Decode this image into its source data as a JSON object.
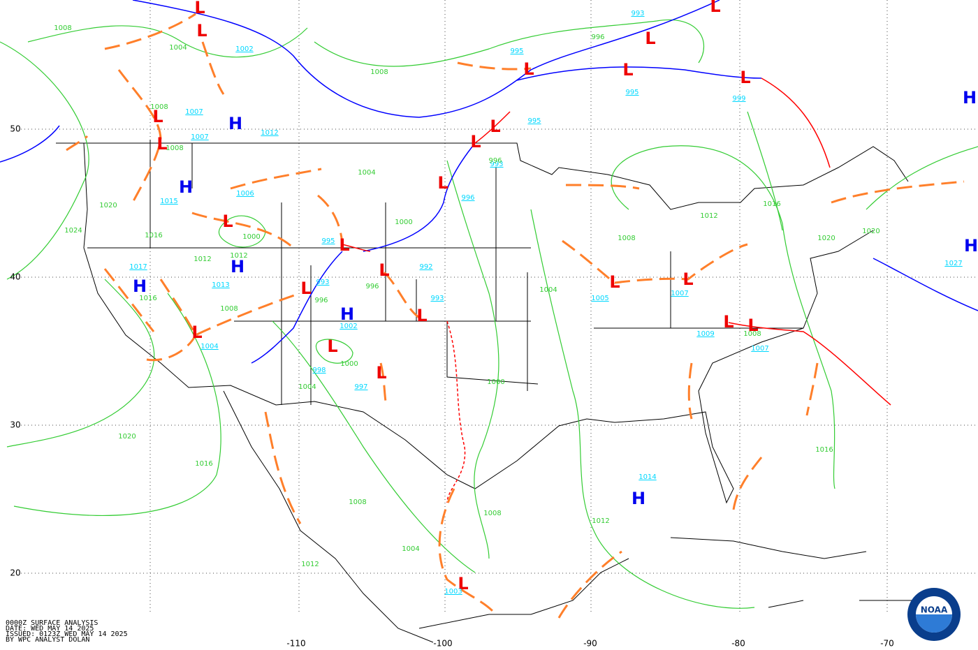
{
  "highs": [
    "H",
    "H",
    "H",
    "H",
    "H",
    "H",
    "H",
    "H"
  ],
  "lows": [
    "L",
    "L",
    "L",
    "L",
    "L",
    "L",
    "L",
    "L",
    "L",
    "L",
    "L",
    "L",
    "L",
    "L",
    "L",
    "L",
    "L",
    "L",
    "L",
    "L",
    "L",
    "L",
    "L",
    "L",
    "L"
  ],
  "central_pressures": [
    993,
    995,
    1002,
    995,
    999,
    1007,
    995,
    1012,
    1007,
    993,
    1006,
    996,
    1015,
    995,
    1017,
    992,
    1013,
    993,
    993,
    1005,
    1007,
    1002,
    1004,
    1009,
    1007,
    998,
    997,
    1014,
    1003,
    1027
  ],
  "isobar_labels": [
    1008,
    1004,
    1008,
    996,
    1008,
    1008,
    1004,
    996,
    1020,
    1000,
    1024,
    1016,
    1012,
    1012,
    1000,
    1008,
    1016,
    1012,
    1020,
    1020,
    996,
    996,
    1008,
    1016,
    1004,
    1008,
    1000,
    1004,
    1000,
    1020,
    1016,
    1008,
    1008,
    1012,
    1016,
    1004,
    1012
  ],
  "lat_labels": [
    50,
    40,
    30,
    20
  ],
  "lon_labels": [
    -110,
    -100,
    -90,
    -80,
    -70
  ],
  "footer": [
    "0000Z SURFACE ANALYSIS",
    "DATE: WED MAY 14 2025",
    "ISSUED: 0123Z WED MAY 14 2025",
    "BY WPC ANALYST DOLAN"
  ],
  "logo": "NOAA"
}
